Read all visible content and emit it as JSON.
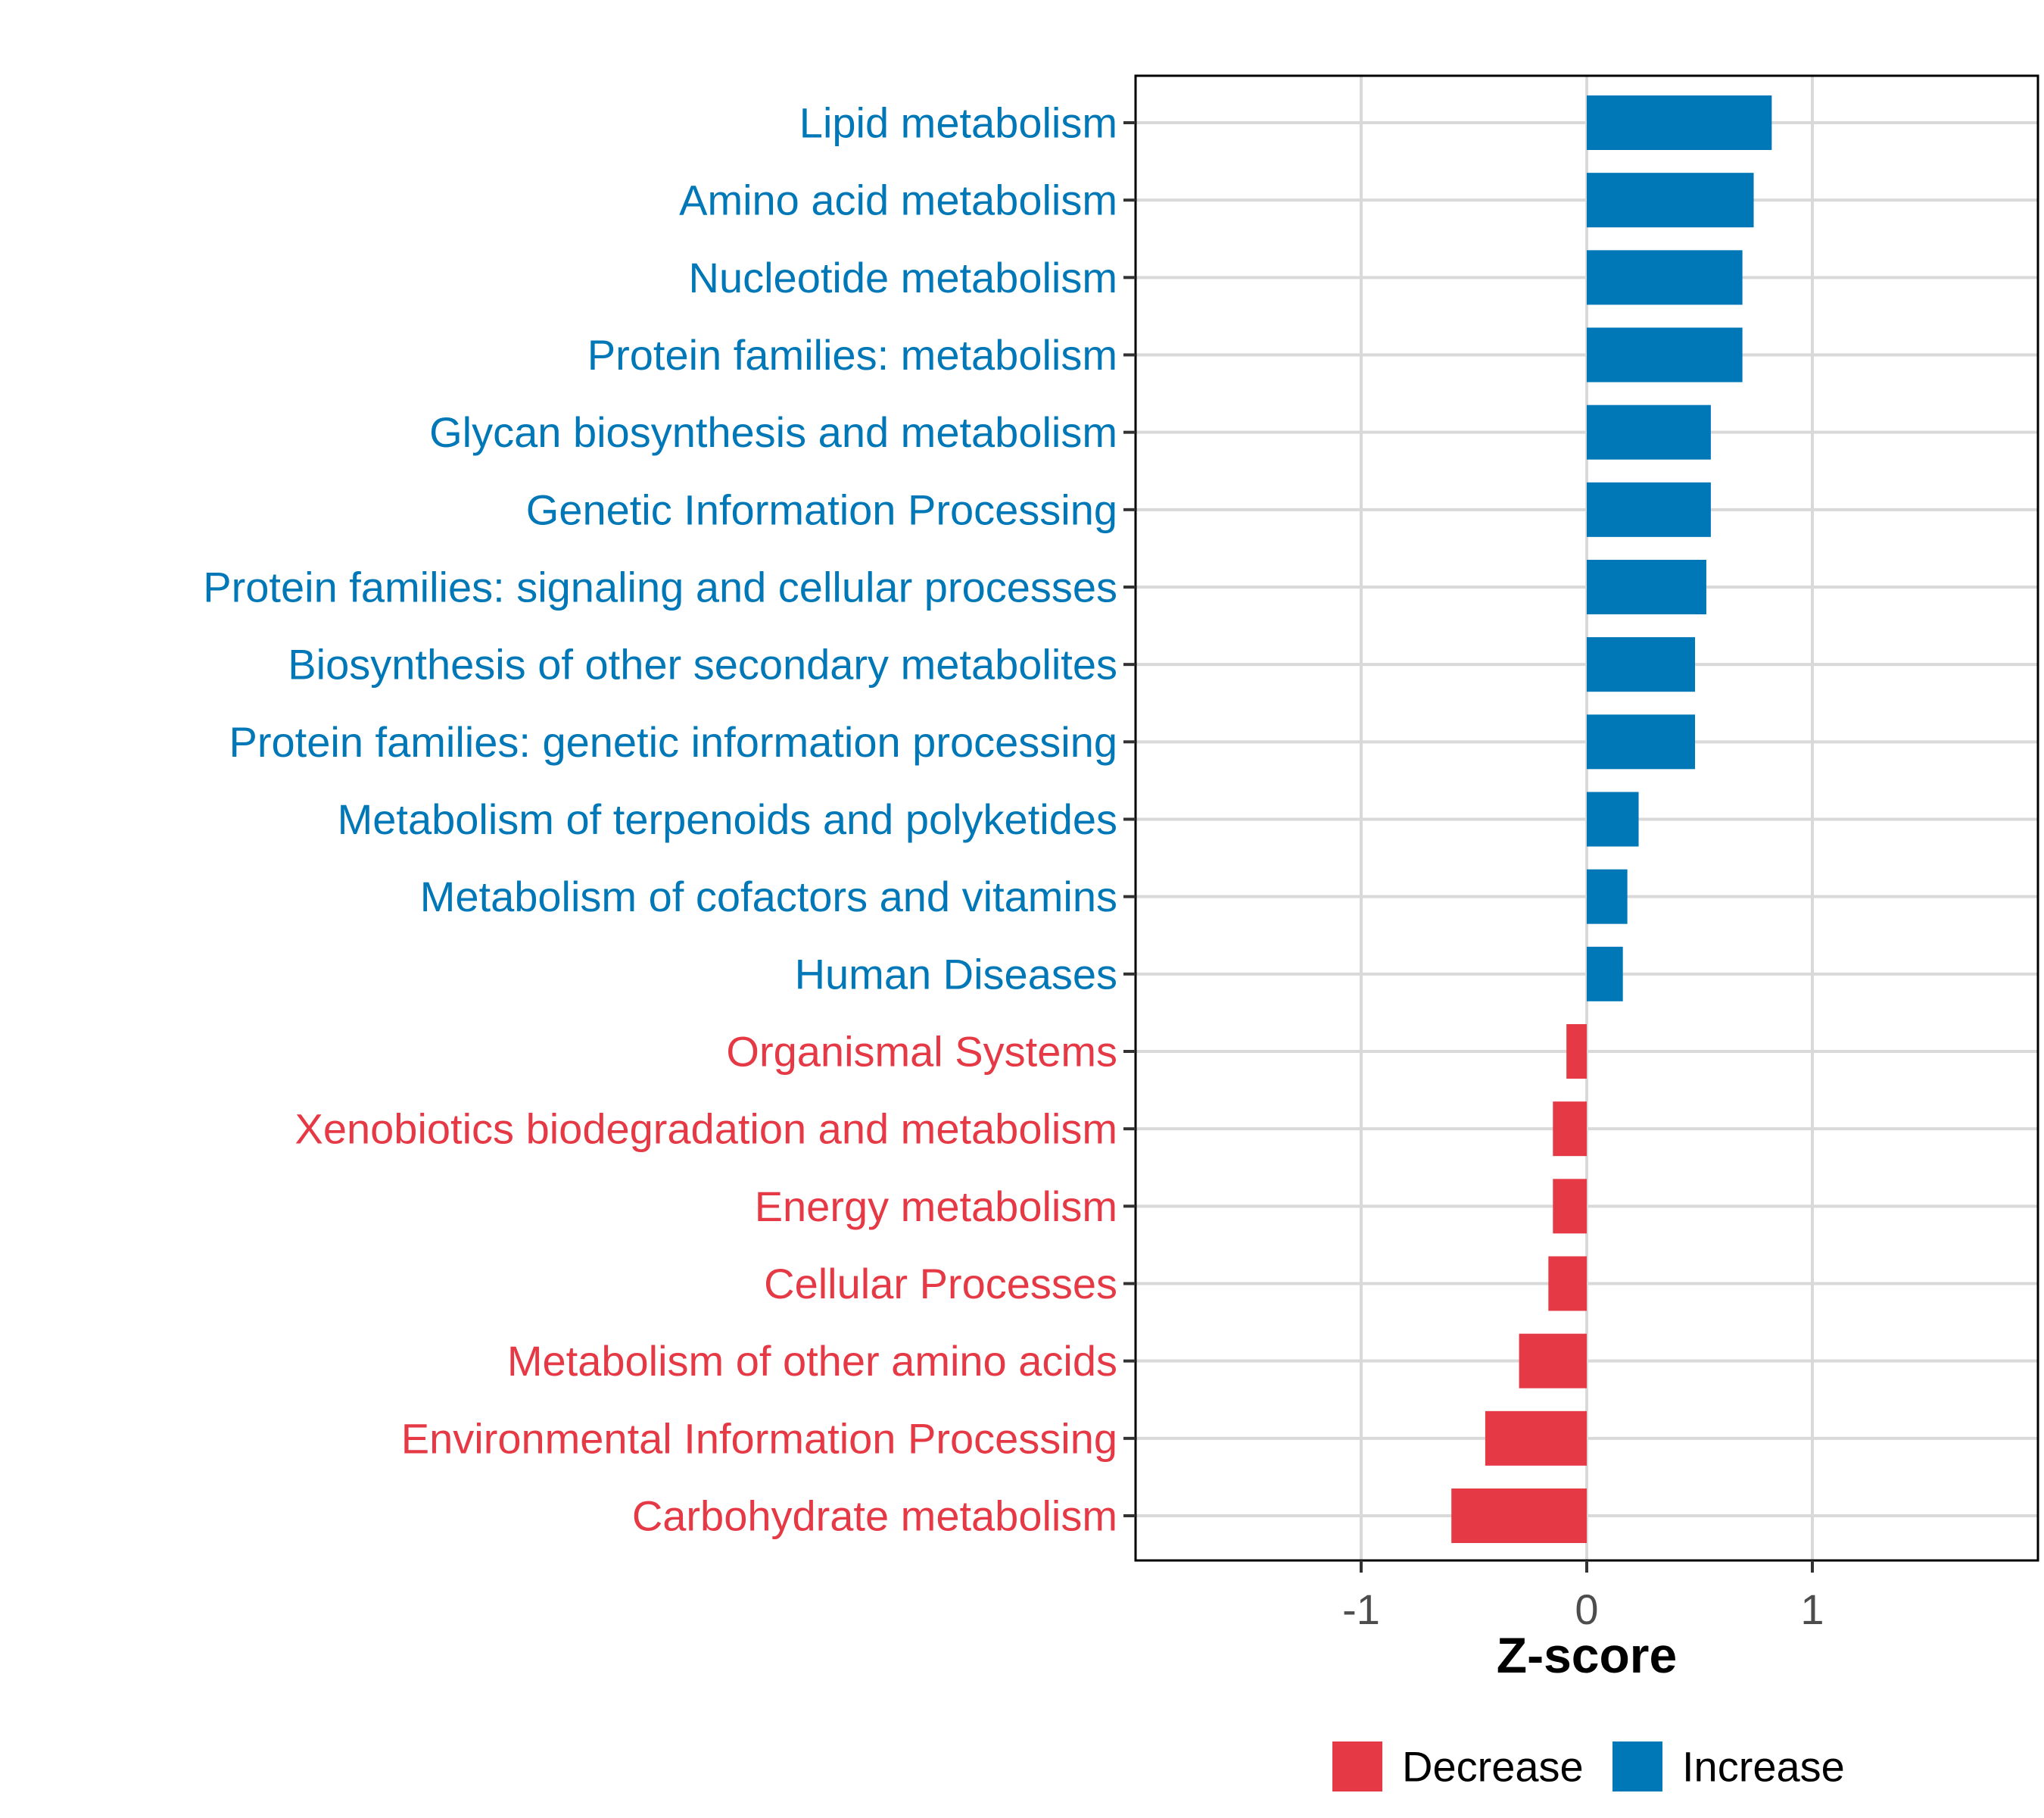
{
  "chart_data": {
    "type": "bar",
    "orientation": "horizontal",
    "title": "",
    "xlabel": "Z-score",
    "ylabel": "",
    "xlim": [
      -2,
      2
    ],
    "xticks": [
      -1,
      0,
      1
    ],
    "xtick_labels": [
      "-1",
      "0",
      "1"
    ],
    "grid": true,
    "legend_position": "bottom",
    "colors": {
      "Decrease": "#e63946",
      "Increase": "#0077b6"
    },
    "legend": [
      {
        "name": "Decrease",
        "color": "#e63946"
      },
      {
        "name": "Increase",
        "color": "#0077b6"
      }
    ],
    "categories": [
      "Lipid metabolism",
      "Amino acid metabolism",
      "Nucleotide metabolism",
      "Protein families: metabolism",
      "Glycan biosynthesis and metabolism",
      "Genetic Information Processing",
      "Protein families: signaling and cellular processes",
      "Biosynthesis of other secondary metabolites",
      "Protein families: genetic information processing",
      "Metabolism of terpenoids and polyketides",
      "Metabolism of cofactors and vitamins",
      "Human Diseases",
      "Organismal Systems",
      "Xenobiotics biodegradation and metabolism",
      "Energy metabolism",
      "Cellular Processes",
      "Metabolism of other amino acids",
      "Environmental Information Processing",
      "Carbohydrate metabolism"
    ],
    "values": [
      0.82,
      0.74,
      0.69,
      0.69,
      0.55,
      0.55,
      0.53,
      0.48,
      0.48,
      0.23,
      0.18,
      0.16,
      -0.09,
      -0.15,
      -0.15,
      -0.17,
      -0.3,
      -0.45,
      -0.6
    ],
    "groups": [
      "Increase",
      "Increase",
      "Increase",
      "Increase",
      "Increase",
      "Increase",
      "Increase",
      "Increase",
      "Increase",
      "Increase",
      "Increase",
      "Increase",
      "Decrease",
      "Decrease",
      "Decrease",
      "Decrease",
      "Decrease",
      "Decrease",
      "Decrease"
    ]
  }
}
